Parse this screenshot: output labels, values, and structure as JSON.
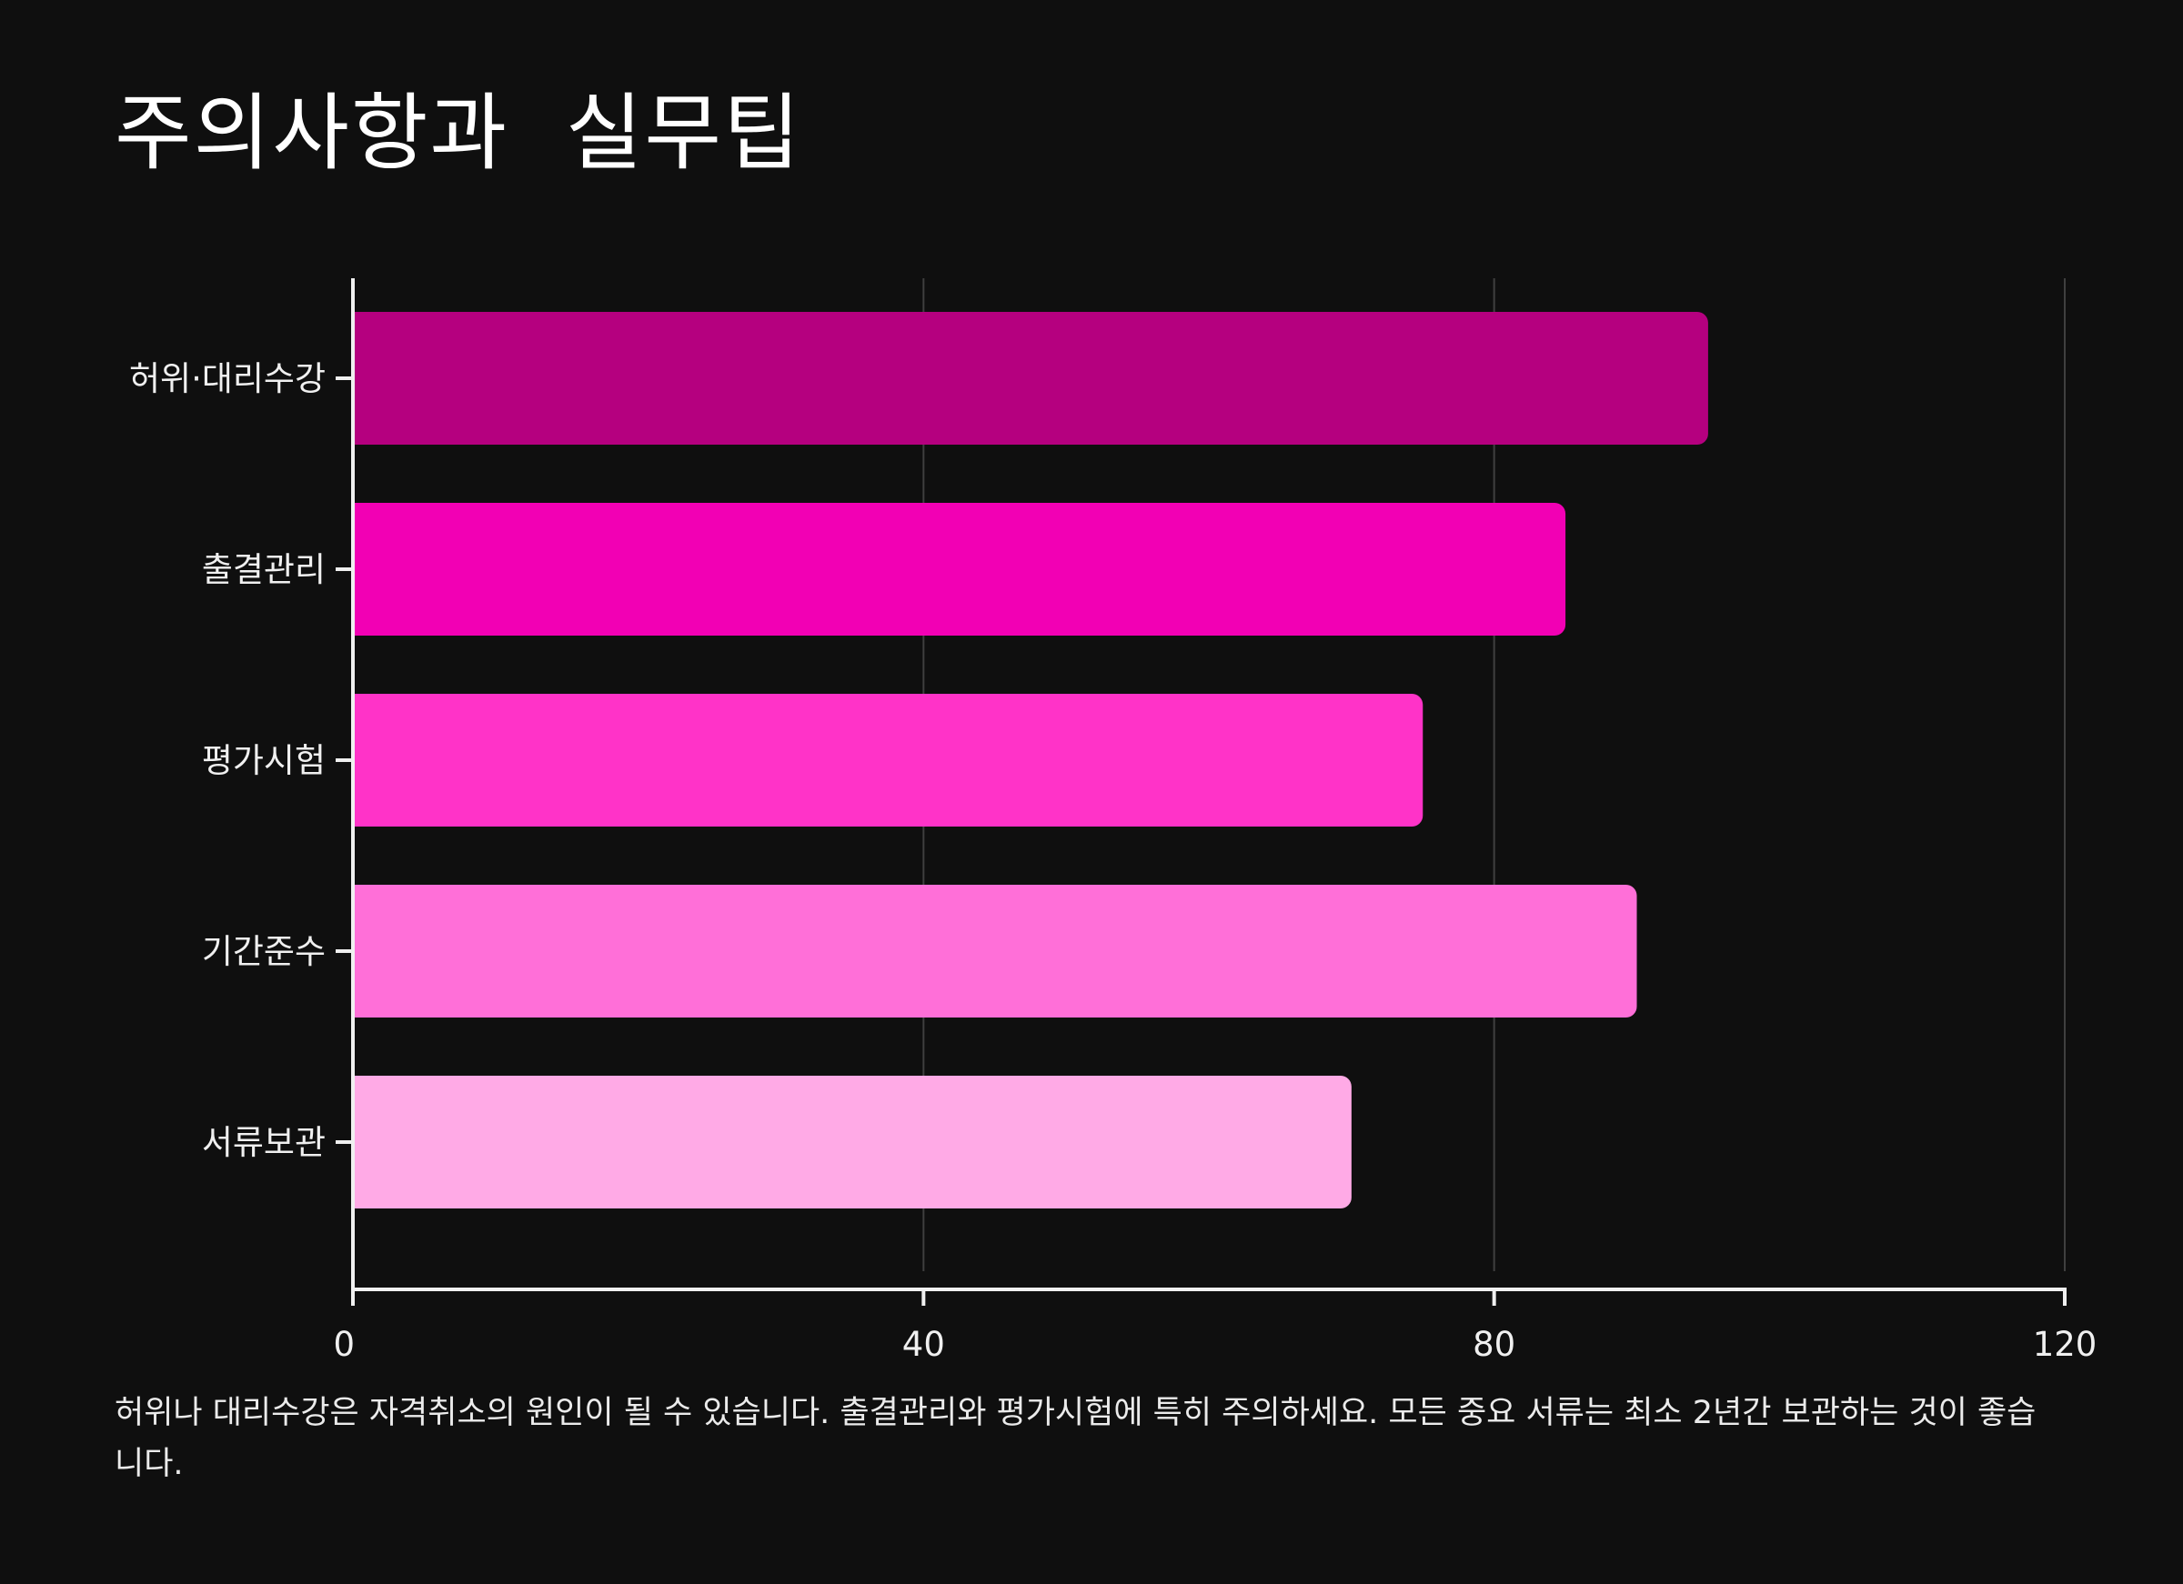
{
  "title": "주의사항과  실무팁",
  "caption": "허위나 대리수강은 자격취소의 원인이 될 수 있습니다. 출결관리와 평가시험에 특히 주의하세요. 모든 중요 서류는 최소 2년간 보관하는 것이 좋습니다.",
  "chart_data": {
    "type": "bar",
    "orientation": "horizontal",
    "categories": [
      "허위·대리수강",
      "출결관리",
      "평가시험",
      "기간준수",
      "서류보관"
    ],
    "values": [
      95,
      85,
      75,
      90,
      70
    ],
    "colors": [
      "#b5007f",
      "#f200b4",
      "#ff33c8",
      "#ff6fd8",
      "#ffaae6"
    ],
    "xlim": [
      0,
      120
    ],
    "xticks": [
      0,
      40,
      80,
      120
    ],
    "xtick_labels": [
      "0",
      "40",
      "80",
      "120"
    ],
    "grid": "vertical",
    "xlabel": "",
    "ylabel": ""
  }
}
